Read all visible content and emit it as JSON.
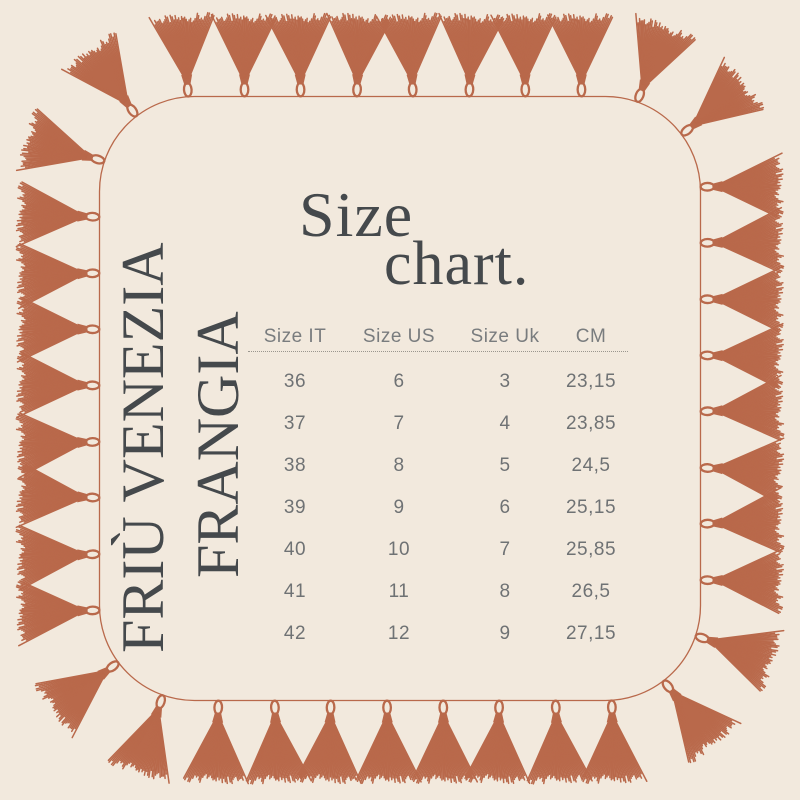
{
  "brand": {
    "line1": "FRIÙ VENEZIA",
    "line2": "FRANGIA"
  },
  "title": {
    "word1": "Size",
    "word2": "chart."
  },
  "table": {
    "headers": [
      "Size IT",
      "Size US",
      "Size Uk",
      "CM"
    ],
    "rows": [
      [
        "36",
        "6",
        "3",
        "23,15"
      ],
      [
        "37",
        "7",
        "4",
        "23,85"
      ],
      [
        "38",
        "8",
        "5",
        "24,5"
      ],
      [
        "39",
        "9",
        "6",
        "25,15"
      ],
      [
        "40",
        "10",
        "7",
        "25,85"
      ],
      [
        "41",
        "11",
        "8",
        "26,5"
      ],
      [
        "42",
        "12",
        "9",
        "27,15"
      ]
    ]
  },
  "decor": {
    "background_color": "#f2e9dd",
    "panel_color": "#f2e9dd",
    "tassel_color": "#b9694b",
    "border_color": "#b9694b",
    "title_text_color": "#45494c",
    "table_text_color": "#6f7274",
    "tassel_count": 40
  }
}
